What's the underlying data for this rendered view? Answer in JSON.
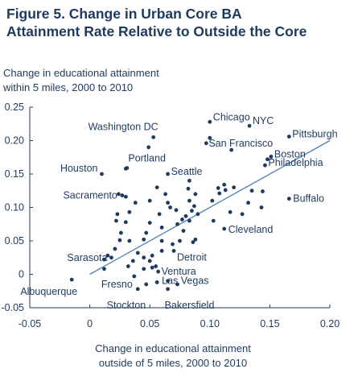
{
  "figure": {
    "title_line1": "Figure 5. Change in Urban Core BA",
    "title_line2": "Attainment Rate Relative to Outside the Core"
  },
  "colors": {
    "title": "#1f3a5f",
    "text": "#1f3a5f",
    "points": "#1f3a5f",
    "trendline": "#4a7db5",
    "axis": "#1f3a5f"
  },
  "chart_data": {
    "type": "scatter",
    "ylabel_line1": "Change in educational attainment",
    "ylabel_line2": "within 5 miles, 2000 to 2010",
    "xlabel_line1": "Change in educational attainment",
    "xlabel_line2": "outside of 5 miles, 2000 to 2010",
    "xlim": [
      -0.05,
      0.2
    ],
    "ylim": [
      -0.05,
      0.25
    ],
    "x_ticks": [
      -0.05,
      0,
      0.05,
      0.1,
      0.15,
      0.2
    ],
    "x_tick_labels": [
      "-0.05",
      "0",
      "0.05",
      "0.10",
      "0.15",
      "0.20"
    ],
    "y_ticks": [
      -0.05,
      0,
      0.05,
      0.1,
      0.15,
      0.2,
      0.25
    ],
    "y_tick_labels": [
      "-0.05",
      "0",
      "0.05",
      "0.10",
      "0.15",
      "0.20",
      "0.25"
    ],
    "grid": false,
    "trendline": {
      "x": [
        0,
        0.2
      ],
      "y": [
        0,
        0.2
      ]
    },
    "labeled_points": [
      {
        "name": "Chicago",
        "x": 0.1,
        "y": 0.228
      },
      {
        "name": "NYC",
        "x": 0.133,
        "y": 0.222
      },
      {
        "name": "Pittsburgh",
        "x": 0.166,
        "y": 0.206
      },
      {
        "name": "Washington DC",
        "x": 0.053,
        "y": 0.205
      },
      {
        "name": "San Francisco",
        "x": 0.097,
        "y": 0.196
      },
      {
        "name": "Boston",
        "x": 0.151,
        "y": 0.176
      },
      {
        "name": "Philadelphia",
        "x": 0.146,
        "y": 0.163
      },
      {
        "name": "Portland",
        "x": 0.03,
        "y": 0.158
      },
      {
        "name": "Houston",
        "x": 0.01,
        "y": 0.15
      },
      {
        "name": "Seattle",
        "x": 0.065,
        "y": 0.15
      },
      {
        "name": "Sacramento",
        "x": 0.027,
        "y": 0.118
      },
      {
        "name": "Buffalo",
        "x": 0.166,
        "y": 0.113
      },
      {
        "name": "Cleveland",
        "x": 0.112,
        "y": 0.068
      },
      {
        "name": "Detroit",
        "x": 0.07,
        "y": 0.035
      },
      {
        "name": "Sarasota",
        "x": 0.018,
        "y": 0.025
      },
      {
        "name": "Ventura",
        "x": 0.057,
        "y": 0.004
      },
      {
        "name": "Fresno",
        "x": 0.037,
        "y": -0.003
      },
      {
        "name": "Las Vegas",
        "x": 0.056,
        "y": -0.012
      },
      {
        "name": "Albuquerque",
        "x": -0.015,
        "y": -0.008
      },
      {
        "name": "Stockton",
        "x": 0.04,
        "y": -0.022
      },
      {
        "name": "Bakersfield",
        "x": 0.065,
        "y": -0.022
      }
    ],
    "points": [
      {
        "x": 0.1,
        "y": 0.204
      },
      {
        "x": 0.118,
        "y": 0.186
      },
      {
        "x": 0.148,
        "y": 0.172
      },
      {
        "x": 0.049,
        "y": 0.19
      },
      {
        "x": 0.031,
        "y": 0.159
      },
      {
        "x": 0.024,
        "y": 0.12
      },
      {
        "x": 0.03,
        "y": 0.116
      },
      {
        "x": 0.112,
        "y": 0.134
      },
      {
        "x": 0.113,
        "y": 0.126
      },
      {
        "x": 0.107,
        "y": 0.129
      },
      {
        "x": 0.12,
        "y": 0.13
      },
      {
        "x": 0.108,
        "y": 0.121
      },
      {
        "x": 0.135,
        "y": 0.125
      },
      {
        "x": 0.144,
        "y": 0.124
      },
      {
        "x": 0.132,
        "y": 0.107
      },
      {
        "x": 0.143,
        "y": 0.1
      },
      {
        "x": 0.117,
        "y": 0.093
      },
      {
        "x": 0.127,
        "y": 0.09
      },
      {
        "x": 0.102,
        "y": 0.11
      },
      {
        "x": 0.103,
        "y": 0.08
      },
      {
        "x": 0.083,
        "y": 0.14
      },
      {
        "x": 0.082,
        "y": 0.128
      },
      {
        "x": 0.088,
        "y": 0.12
      },
      {
        "x": 0.083,
        "y": 0.11
      },
      {
        "x": 0.087,
        "y": 0.102
      },
      {
        "x": 0.09,
        "y": 0.09
      },
      {
        "x": 0.085,
        "y": 0.095
      },
      {
        "x": 0.08,
        "y": 0.087
      },
      {
        "x": 0.077,
        "y": 0.082
      },
      {
        "x": 0.083,
        "y": 0.08
      },
      {
        "x": 0.072,
        "y": 0.096
      },
      {
        "x": 0.073,
        "y": 0.075
      },
      {
        "x": 0.078,
        "y": 0.065
      },
      {
        "x": 0.067,
        "y": 0.1
      },
      {
        "x": 0.065,
        "y": 0.107
      },
      {
        "x": 0.063,
        "y": 0.12
      },
      {
        "x": 0.056,
        "y": 0.13
      },
      {
        "x": 0.05,
        "y": 0.11
      },
      {
        "x": 0.058,
        "y": 0.09
      },
      {
        "x": 0.05,
        "y": 0.077
      },
      {
        "x": 0.06,
        "y": 0.07
      },
      {
        "x": 0.047,
        "y": 0.062
      },
      {
        "x": 0.045,
        "y": 0.052
      },
      {
        "x": 0.06,
        "y": 0.05
      },
      {
        "x": 0.075,
        "y": 0.05
      },
      {
        "x": 0.088,
        "y": 0.052
      },
      {
        "x": 0.086,
        "y": 0.048
      },
      {
        "x": 0.069,
        "y": 0.045
      },
      {
        "x": 0.04,
        "y": 0.032
      },
      {
        "x": 0.052,
        "y": 0.028
      },
      {
        "x": 0.06,
        "y": 0.035
      },
      {
        "x": 0.05,
        "y": 0.02
      },
      {
        "x": 0.045,
        "y": 0.025
      },
      {
        "x": 0.036,
        "y": 0.02
      },
      {
        "x": 0.038,
        "y": 0.107
      },
      {
        "x": 0.033,
        "y": 0.093
      },
      {
        "x": 0.023,
        "y": 0.09
      },
      {
        "x": 0.022,
        "y": 0.08
      },
      {
        "x": 0.03,
        "y": 0.078
      },
      {
        "x": 0.026,
        "y": 0.062
      },
      {
        "x": 0.033,
        "y": 0.05
      },
      {
        "x": 0.025,
        "y": 0.051
      },
      {
        "x": 0.021,
        "y": 0.038
      },
      {
        "x": 0.015,
        "y": 0.028
      },
      {
        "x": 0.012,
        "y": 0.022
      },
      {
        "x": 0.032,
        "y": 0.012
      },
      {
        "x": 0.045,
        "y": 0.008
      },
      {
        "x": 0.055,
        "y": 0.012
      },
      {
        "x": 0.012,
        "y": 0.008
      },
      {
        "x": 0.065,
        "y": -0.01
      },
      {
        "x": 0.073,
        "y": -0.015
      },
      {
        "x": 0.047,
        "y": -0.015
      },
      {
        "x": 0.052,
        "y": 0.01
      }
    ]
  }
}
